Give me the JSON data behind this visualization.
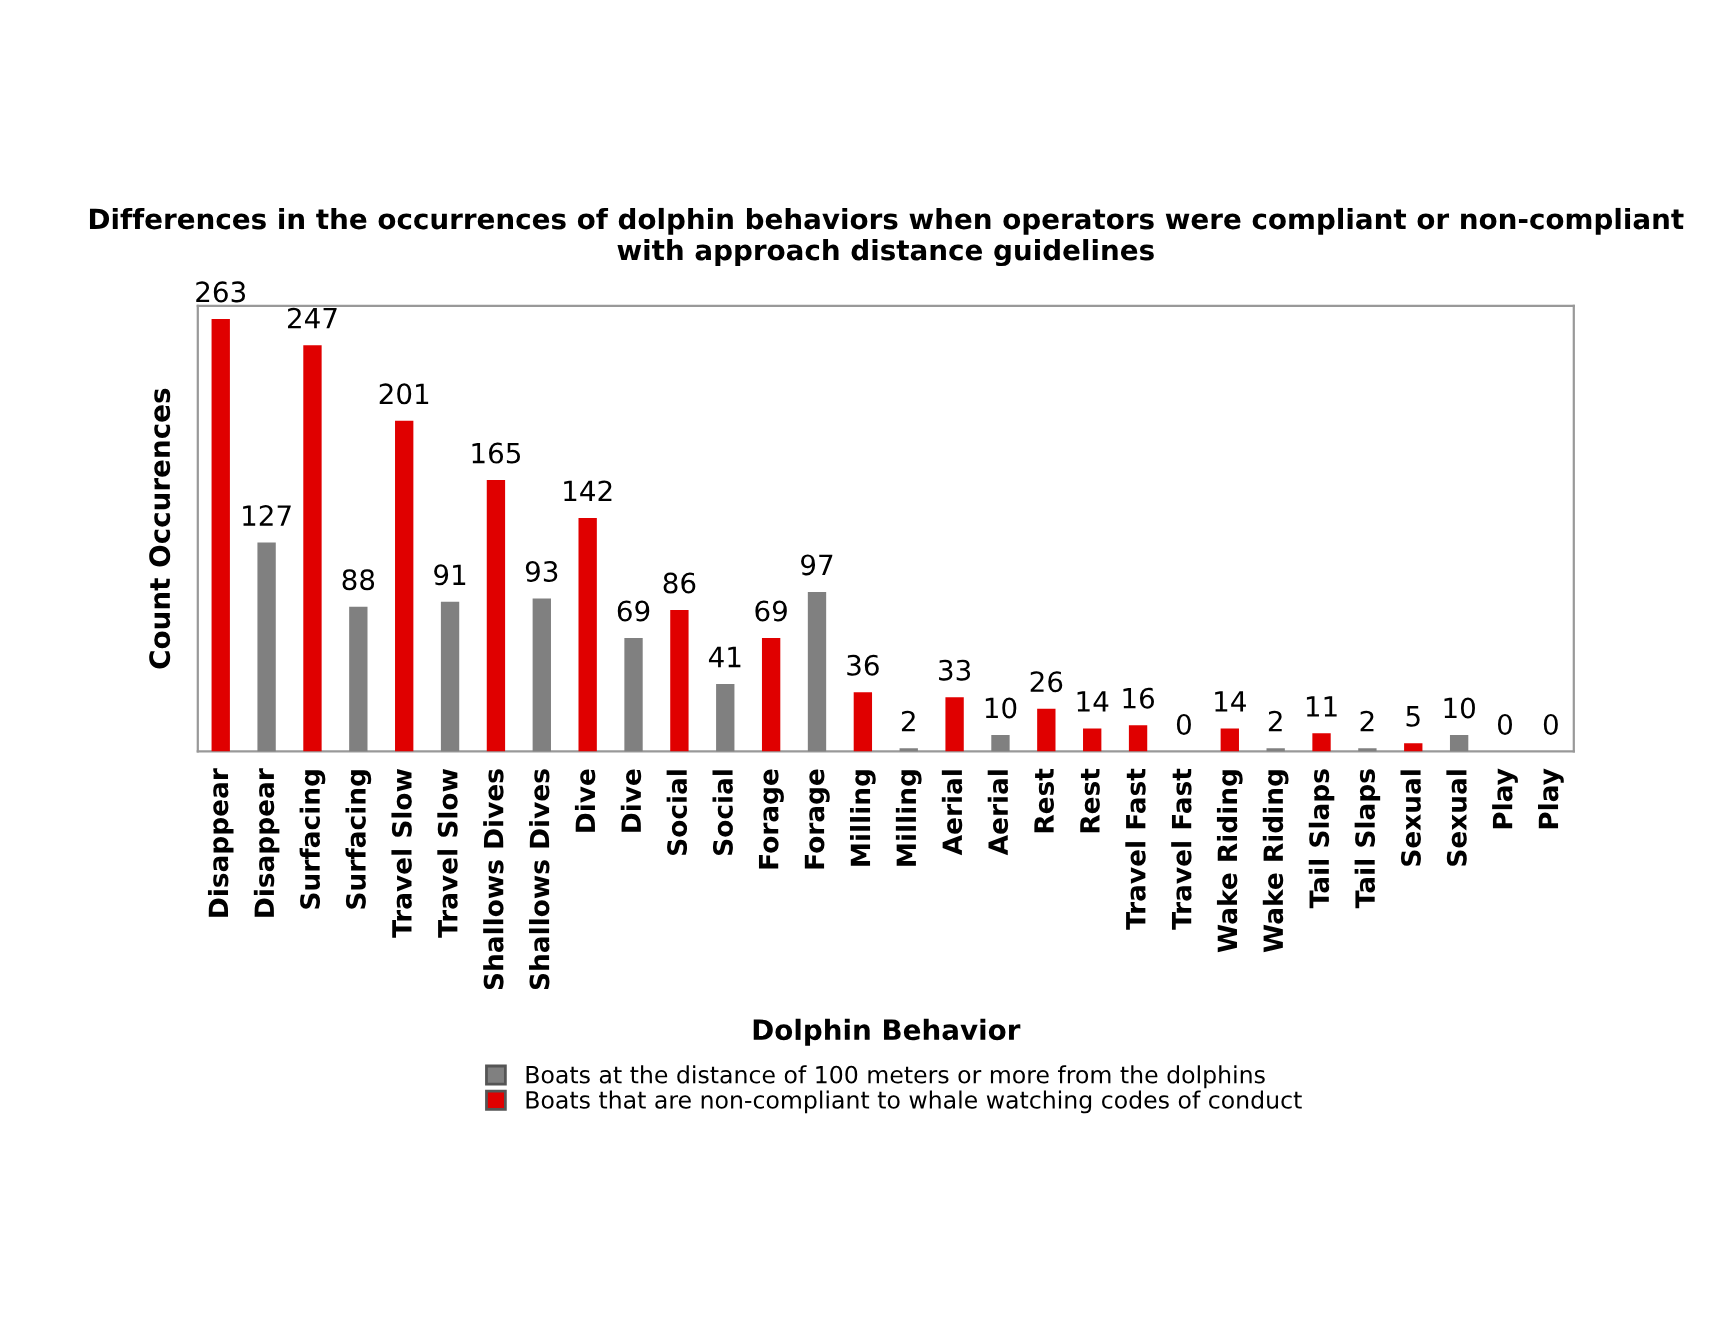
{
  "chart_data": {
    "type": "bar",
    "title": "Differences in the occurrences of dolphin behaviors when operators were compliant or non-compliant with approach distance guidelines",
    "xlabel": "Dolphin Behavior",
    "ylabel": "Count Occurences",
    "categories": [
      "Disappear",
      "Disappear",
      "Surfacing",
      "Surfacing",
      "Travel Slow",
      "Travel Slow",
      "Shallows Dives",
      "Shallows Dives",
      "Dive",
      "Dive",
      "Social",
      "Social",
      "Forage",
      "Forage",
      "Milling",
      "Milling",
      "Aerial",
      "Aerial",
      "Rest",
      "Rest",
      "Travel Fast",
      "Travel Fast",
      "Wake Riding",
      "Wake Riding",
      "Tail Slaps",
      "Tail Slaps",
      "Sexual",
      "Sexual",
      "Play",
      "Play"
    ],
    "series": [
      {
        "name": "Boats at the distance of 100 meters or more from the dolphins",
        "color": "#808080",
        "values": [
          null,
          127,
          null,
          88,
          null,
          91,
          null,
          93,
          null,
          69,
          null,
          41,
          null,
          97,
          null,
          2,
          null,
          10,
          null,
          null,
          null,
          0,
          null,
          2,
          null,
          2,
          null,
          10,
          null,
          0
        ]
      },
      {
        "name": "Boats that are non-compliant to whale watching codes of conduct",
        "color": "#e00000",
        "values": [
          263,
          null,
          247,
          null,
          201,
          null,
          165,
          null,
          142,
          null,
          86,
          null,
          69,
          null,
          36,
          null,
          33,
          null,
          26,
          14,
          16,
          null,
          14,
          null,
          11,
          null,
          5,
          null,
          0,
          null
        ]
      }
    ],
    "data_labels": true,
    "grid": false,
    "legend": "bottom"
  }
}
